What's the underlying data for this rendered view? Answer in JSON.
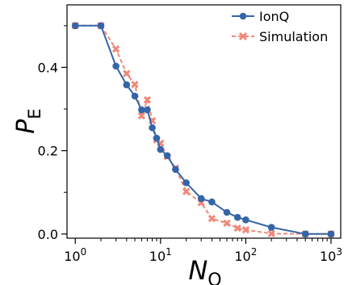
{
  "chart_data": {
    "type": "line",
    "x_scale": "log",
    "xlim": [
      0.8,
      1300
    ],
    "ylim": [
      -0.01,
      0.55
    ],
    "x_ticks": [
      {
        "value": 1,
        "base": "10",
        "exp": "0"
      },
      {
        "value": 10,
        "base": "10",
        "exp": "1"
      },
      {
        "value": 100,
        "base": "10",
        "exp": "2"
      },
      {
        "value": 1000,
        "base": "10",
        "exp": "3"
      }
    ],
    "y_ticks": [
      {
        "value": 0.0,
        "label": "0.0"
      },
      {
        "value": 0.2,
        "label": "0.2"
      },
      {
        "value": 0.4,
        "label": "0.4"
      }
    ],
    "xlabel": {
      "main": "N",
      "sub": "Q"
    },
    "ylabel": {
      "main": "P",
      "sub": "E"
    },
    "legend_position": "top-right",
    "series": [
      {
        "name": "IonQ",
        "color": "#3565a8",
        "linestyle": "solid",
        "marker": "circle",
        "x": [
          1,
          2,
          3,
          4,
          5,
          6,
          7,
          8,
          9,
          10,
          12,
          15,
          20,
          30,
          40,
          60,
          80,
          100,
          200,
          500,
          1000
        ],
        "y": [
          0.5,
          0.5,
          0.403,
          0.358,
          0.331,
          0.298,
          0.298,
          0.255,
          0.23,
          0.203,
          0.188,
          0.155,
          0.123,
          0.085,
          0.077,
          0.052,
          0.04,
          0.034,
          0.016,
          0.0,
          0.0
        ]
      },
      {
        "name": "Simulation",
        "color": "#f08878",
        "linestyle": "dashed",
        "marker": "x",
        "x": [
          1,
          2,
          3,
          4,
          5,
          6,
          7,
          8,
          9,
          10,
          12,
          15,
          20,
          30,
          40,
          60,
          80,
          100,
          200,
          500,
          1000
        ],
        "y": [
          0.5,
          0.5,
          0.444,
          0.385,
          0.359,
          0.284,
          0.322,
          0.272,
          0.226,
          0.218,
          0.186,
          0.158,
          0.102,
          0.075,
          0.037,
          0.026,
          0.014,
          0.01,
          0.001,
          0.0,
          0.0
        ]
      }
    ]
  }
}
